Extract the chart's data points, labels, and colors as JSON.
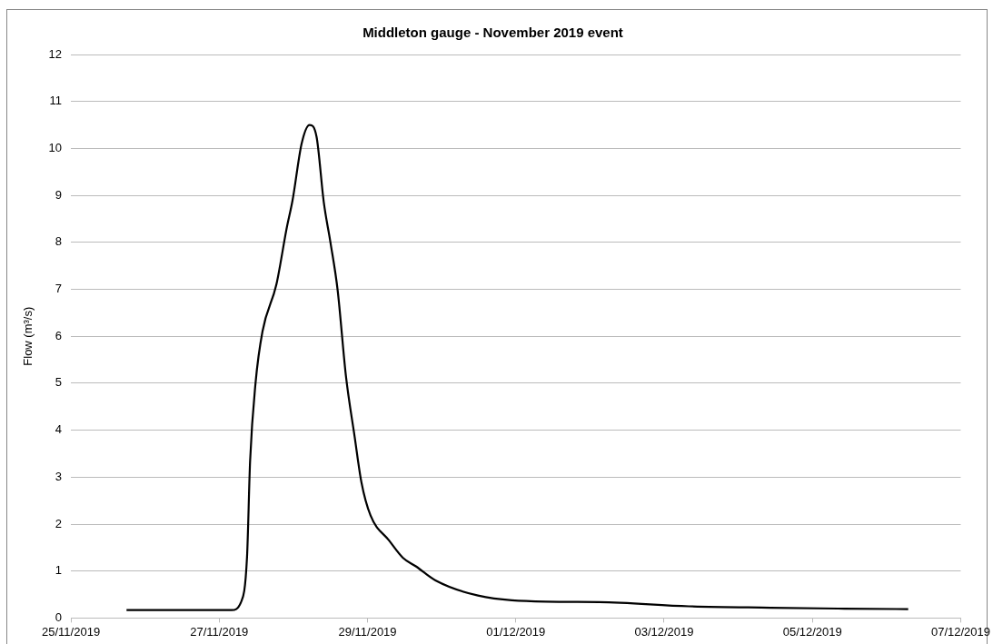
{
  "chart_data": {
    "type": "line",
    "title": "Middleton gauge - November 2019 event",
    "ylabel": "Flow (m³/s)",
    "x": [
      "2019-11-25T18:00",
      "2019-11-27T04:00",
      "2019-11-27T07:00",
      "2019-11-27T09:00",
      "2019-11-27T10:00",
      "2019-11-27T11:45",
      "2019-11-27T14:00",
      "2019-11-27T18:30",
      "2019-11-27T21:50",
      "2019-11-27T23:45",
      "2019-11-28T02:40",
      "2019-11-28T05:15",
      "2019-11-28T07:30",
      "2019-11-28T09:50",
      "2019-11-28T12:00",
      "2019-11-28T14:20",
      "2019-11-28T17:00",
      "2019-11-28T19:50",
      "2019-11-28T22:00",
      "2019-11-29T01:00",
      "2019-11-29T07:00",
      "2019-11-29T11:30",
      "2019-11-29T15:40",
      "2019-11-29T22:00",
      "2019-11-30T11:45",
      "2019-12-01T09:40",
      "2019-12-02T03:00",
      "2019-12-03T08:00",
      "2019-12-04T10:30",
      "2019-12-05T10:20",
      "2019-12-06T07:00"
    ],
    "series": [
      {
        "color": "#000000",
        "values": [
          0.17,
          0.17,
          0.33,
          1.3,
          3.35,
          5.0,
          6.1,
          7.1,
          8.3,
          8.9,
          10.1,
          10.5,
          10.25,
          8.86,
          8.0,
          6.98,
          5.16,
          3.86,
          2.9,
          2.18,
          1.65,
          1.28,
          1.1,
          0.8,
          0.48,
          0.35,
          0.34,
          0.25,
          0.22,
          0.2,
          0.19
        ]
      }
    ],
    "xlim": [
      "2019-11-25",
      "2019-12-07"
    ],
    "xticks": [
      {
        "value": "2019-11-25",
        "label": "25/11/2019"
      },
      {
        "value": "2019-11-27",
        "label": "27/11/2019"
      },
      {
        "value": "2019-11-29",
        "label": "29/11/2019"
      },
      {
        "value": "2019-12-01",
        "label": "01/12/2019"
      },
      {
        "value": "2019-12-03",
        "label": "03/12/2019"
      },
      {
        "value": "2019-12-05",
        "label": "05/12/2019"
      },
      {
        "value": "2019-12-07",
        "label": "07/12/2019"
      }
    ],
    "ylim": [
      0,
      12
    ],
    "yticks": [
      0,
      1,
      2,
      3,
      4,
      5,
      6,
      7,
      8,
      9,
      10,
      11,
      12
    ],
    "grid": "y",
    "legend": false,
    "marker": "none",
    "line_style": "solid"
  }
}
